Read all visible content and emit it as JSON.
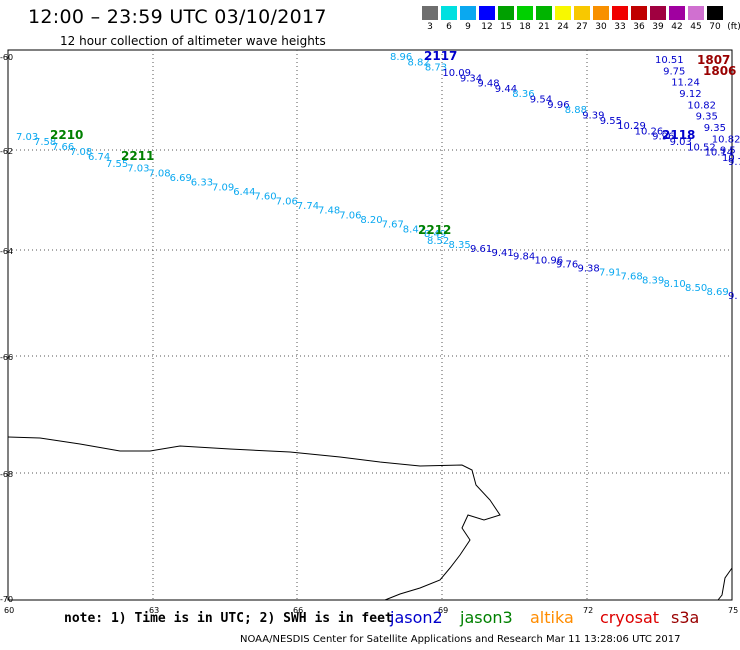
{
  "title": "12:00 – 23:59 UTC 03/10/2017",
  "subtitle": "12 hour collection of altimeter wave heights",
  "legend": {
    "unit_label": "(ft)",
    "items": [
      {
        "label": "3",
        "color": "#6e6e6e"
      },
      {
        "label": "6",
        "color": "#00e0e0"
      },
      {
        "label": "9",
        "color": "#0aa8f0"
      },
      {
        "label": "12",
        "color": "#0000ff"
      },
      {
        "label": "15",
        "color": "#00a000"
      },
      {
        "label": "18",
        "color": "#00d000"
      },
      {
        "label": "21",
        "color": "#00b400"
      },
      {
        "label": "24",
        "color": "#f8f800"
      },
      {
        "label": "27",
        "color": "#f8c800"
      },
      {
        "label": "30",
        "color": "#f89000"
      },
      {
        "label": "33",
        "color": "#f00000"
      },
      {
        "label": "36",
        "color": "#c00000"
      },
      {
        "label": "39",
        "color": "#a00040"
      },
      {
        "label": "42",
        "color": "#a000a0"
      },
      {
        "label": "45",
        "color": "#d070d0"
      },
      {
        "label": "70",
        "color": "#000000"
      }
    ]
  },
  "axes": {
    "lat_labels": [
      "-60",
      "-62",
      "-64",
      "-66",
      "-68",
      "-70"
    ],
    "lon_labels": [
      "60",
      "63",
      "66",
      "69",
      "72",
      "75"
    ]
  },
  "note": "note: 1) Time is in UTC; 2) SWH is in feet",
  "satellites": [
    {
      "name": "jason2",
      "color": "#0000cc"
    },
    {
      "name": "jason3",
      "color": "#008000"
    },
    {
      "name": "altika",
      "color": "#ff8c00"
    },
    {
      "name": "cryosat",
      "color": "#dd0000"
    },
    {
      "name": "s3a",
      "color": "#990000"
    }
  ],
  "footer": "NOAA/NESDIS Center for Satellite Applications and Research    Mar 11 13:28:06 UTC 2017",
  "tracks": [
    {
      "id": "2210",
      "color": "#008000",
      "labels": [
        {
          "t": "7.03",
          "c": "#0aa8f0"
        },
        {
          "t": "7.58",
          "c": "#0aa8f0"
        },
        {
          "t": "7.66",
          "c": "#0aa8f0"
        },
        {
          "t": "7.08",
          "c": "#0aa8f0"
        },
        {
          "t": "6.74",
          "c": "#0aa8f0"
        }
      ]
    },
    {
      "id": "2211",
      "color": "#008000",
      "labels": [
        {
          "t": "7.55",
          "c": "#0aa8f0"
        },
        {
          "t": "7.03",
          "c": "#0aa8f0"
        },
        {
          "t": "7.08",
          "c": "#0aa8f0"
        },
        {
          "t": "6.69",
          "c": "#0aa8f0"
        },
        {
          "t": "6.33",
          "c": "#0aa8f0"
        },
        {
          "t": "7.09",
          "c": "#0aa8f0"
        },
        {
          "t": "6.44",
          "c": "#0aa8f0"
        },
        {
          "t": "7.60",
          "c": "#0aa8f0"
        },
        {
          "t": "7.06",
          "c": "#0aa8f0"
        },
        {
          "t": "7.74",
          "c": "#0aa8f0"
        },
        {
          "t": "7.48",
          "c": "#0aa8f0"
        },
        {
          "t": "7.06",
          "c": "#0aa8f0"
        },
        {
          "t": "8.20",
          "c": "#0aa8f0"
        },
        {
          "t": "7.67",
          "c": "#0aa8f0"
        },
        {
          "t": "8.47",
          "c": "#0aa8f0"
        },
        {
          "t": "8.49",
          "c": "#0aa8f0"
        }
      ]
    },
    {
      "id": "2212",
      "color": "#008000",
      "labels": [
        {
          "t": "8.52",
          "c": "#0aa8f0"
        },
        {
          "t": "8.35",
          "c": "#0aa8f0"
        },
        {
          "t": "9.61",
          "c": "#0000cc"
        },
        {
          "t": "9.41",
          "c": "#0000cc"
        },
        {
          "t": "9.84",
          "c": "#0000cc"
        },
        {
          "t": "10.96",
          "c": "#0000cc"
        },
        {
          "t": "9.76",
          "c": "#0000cc"
        },
        {
          "t": "9.38",
          "c": "#0000cc"
        },
        {
          "t": "7.91",
          "c": "#0aa8f0"
        },
        {
          "t": "7.68",
          "c": "#0aa8f0"
        },
        {
          "t": "8.39",
          "c": "#0aa8f0"
        },
        {
          "t": "8.10",
          "c": "#0aa8f0"
        },
        {
          "t": "8.50",
          "c": "#0aa8f0"
        },
        {
          "t": "8.69",
          "c": "#0aa8f0"
        },
        {
          "t": "9.",
          "c": "#0000cc"
        }
      ]
    },
    {
      "id": "2117",
      "color": "#0000cc",
      "labels": [
        {
          "t": "8.96",
          "c": "#0aa8f0"
        },
        {
          "t": "8.82",
          "c": "#0aa8f0"
        },
        {
          "t": "8.73",
          "c": "#0aa8f0"
        },
        {
          "t": "10.09",
          "c": "#0000cc"
        },
        {
          "t": "9.34",
          "c": "#0000cc"
        },
        {
          "t": "9.48",
          "c": "#0000cc"
        },
        {
          "t": "9.44",
          "c": "#0000cc"
        },
        {
          "t": "8.36",
          "c": "#0aa8f0"
        },
        {
          "t": "9.54",
          "c": "#0000cc"
        },
        {
          "t": "9.96",
          "c": "#0000cc"
        },
        {
          "t": "8.88",
          "c": "#0aa8f0"
        },
        {
          "t": "9.39",
          "c": "#0000cc"
        },
        {
          "t": "9.55",
          "c": "#0000cc"
        },
        {
          "t": "10.29",
          "c": "#0000cc"
        },
        {
          "t": "10.26",
          "c": "#0000cc"
        },
        {
          "t": "9.96",
          "c": "#0000cc"
        },
        {
          "t": "9.03",
          "c": "#0000cc"
        },
        {
          "t": "10.52",
          "c": "#0000cc"
        },
        {
          "t": "10.14",
          "c": "#0000cc"
        },
        {
          "t": "10",
          "c": "#0000cc"
        }
      ]
    },
    {
      "id": "2118",
      "color": "#0000cc",
      "labels": []
    },
    {
      "id": "1807",
      "color": "#990000",
      "labels": [
        {
          "t": "10.51",
          "c": "#0000cc"
        },
        {
          "t": "9.75",
          "c": "#0000cc"
        },
        {
          "t": "11.24",
          "c": "#0000cc"
        },
        {
          "t": "9.12",
          "c": "#0000cc"
        },
        {
          "t": "10.82",
          "c": "#0000cc"
        },
        {
          "t": "9.35",
          "c": "#0000cc"
        },
        {
          "t": "9.35",
          "c": "#0000cc"
        },
        {
          "t": "10.82",
          "c": "#0000cc"
        },
        {
          "t": "9.5",
          "c": "#0000cc"
        },
        {
          "t": "9.7",
          "c": "#0000cc"
        }
      ]
    },
    {
      "id": "1806",
      "color": "#990000",
      "labels": []
    }
  ]
}
